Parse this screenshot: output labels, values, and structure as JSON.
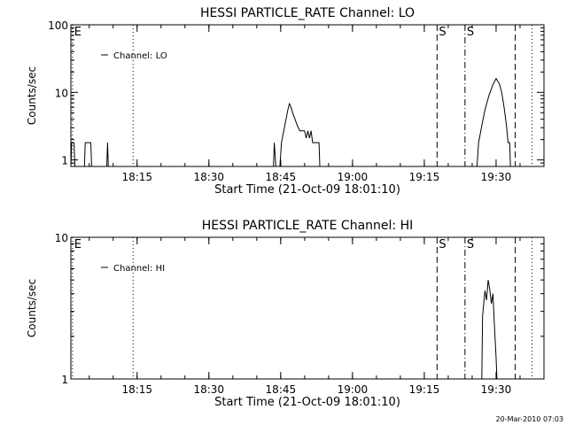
{
  "footer": {
    "timestamp": "20-Mar-2010 07:03"
  },
  "chart_data": [
    {
      "type": "line",
      "title": "HESSI PARTICLE_RATE Channel: LO",
      "xlabel": "Start Time (21-Oct-09 18:01:10)",
      "ylabel": "Counts/sec",
      "yscale": "log",
      "xlim": [
        "18:01:10",
        "19:40:00"
      ],
      "ylim": [
        0.8,
        100
      ],
      "x_ticks": [
        "18:15",
        "18:30",
        "18:45",
        "19:00",
        "19:15",
        "19:30"
      ],
      "y_ticks": [
        "1",
        "10",
        "100"
      ],
      "legend": {
        "position": "top-left",
        "entries": [
          "Channel: LO"
        ]
      },
      "markers": [
        {
          "time": "18:01:30",
          "style": "dotted",
          "label": "E"
        },
        {
          "time": "18:14:10",
          "style": "dotted",
          "label": ""
        },
        {
          "time": "19:17:40",
          "style": "dashed",
          "label": "S"
        },
        {
          "time": "19:23:30",
          "style": "dashdot",
          "label": "S"
        },
        {
          "time": "19:34:00",
          "style": "dashed",
          "label": ""
        },
        {
          "time": "19:37:30",
          "style": "dotted",
          "label": ""
        }
      ],
      "series": [
        {
          "values": [
            [
              "18:01:10",
              0.8
            ],
            [
              "18:01:20",
              1.8
            ],
            [
              "18:01:50",
              1.8
            ],
            [
              "18:02:00",
              0.8
            ],
            [
              "18:04:00",
              0.8
            ],
            [
              "18:04:10",
              1.8
            ],
            [
              "18:05:20",
              1.8
            ],
            [
              "18:05:30",
              0.8
            ],
            [
              "18:08:40",
              0.8
            ],
            [
              "18:08:50",
              1.8
            ],
            [
              "18:09:00",
              0.8
            ],
            [
              "18:43:30",
              0.8
            ],
            [
              "18:43:40",
              1.8
            ],
            [
              "18:44:00",
              0.8
            ],
            [
              "18:44:50",
              0.8
            ],
            [
              "18:45:10",
              1.8
            ],
            [
              "18:45:30",
              2.4
            ],
            [
              "18:46:00",
              3.6
            ],
            [
              "18:46:30",
              5.5
            ],
            [
              "18:46:50",
              6.8
            ],
            [
              "18:47:10",
              6.0
            ],
            [
              "18:47:30",
              5.0
            ],
            [
              "18:48:00",
              4.0
            ],
            [
              "18:48:30",
              3.2
            ],
            [
              "18:49:00",
              2.7
            ],
            [
              "18:50:00",
              2.7
            ],
            [
              "18:50:20",
              2.1
            ],
            [
              "18:50:40",
              2.7
            ],
            [
              "18:51:00",
              2.1
            ],
            [
              "18:51:20",
              2.7
            ],
            [
              "18:51:40",
              1.8
            ],
            [
              "18:53:00",
              1.8
            ],
            [
              "18:53:10",
              0.8
            ],
            [
              "19:26:00",
              0.8
            ],
            [
              "19:26:20",
              1.8
            ],
            [
              "19:27:00",
              3.2
            ],
            [
              "19:27:40",
              5.5
            ],
            [
              "19:28:30",
              9.0
            ],
            [
              "19:29:20",
              13.0
            ],
            [
              "19:30:00",
              16.0
            ],
            [
              "19:30:40",
              13.5
            ],
            [
              "19:31:10",
              10.0
            ],
            [
              "19:31:40",
              6.0
            ],
            [
              "19:32:10",
              3.2
            ],
            [
              "19:32:30",
              1.8
            ],
            [
              "19:32:50",
              1.8
            ],
            [
              "19:33:00",
              0.8
            ]
          ]
        }
      ]
    },
    {
      "type": "line",
      "title": "HESSI PARTICLE_RATE Channel: HI",
      "xlabel": "Start Time (21-Oct-09 18:01:10)",
      "ylabel": "Counts/sec",
      "yscale": "log",
      "xlim": [
        "18:01:10",
        "19:40:00"
      ],
      "ylim": [
        1,
        10
      ],
      "x_ticks": [
        "18:15",
        "18:30",
        "18:45",
        "19:00",
        "19:15",
        "19:30"
      ],
      "y_ticks": [
        "1",
        "10"
      ],
      "legend": {
        "position": "top-left",
        "entries": [
          "Channel: HI"
        ]
      },
      "markers": [
        {
          "time": "18:01:30",
          "style": "dotted",
          "label": "E"
        },
        {
          "time": "18:14:10",
          "style": "dotted",
          "label": ""
        },
        {
          "time": "19:17:40",
          "style": "dashed",
          "label": "S"
        },
        {
          "time": "19:23:30",
          "style": "dashdot",
          "label": "S"
        },
        {
          "time": "19:34:00",
          "style": "dashed",
          "label": ""
        },
        {
          "time": "19:37:30",
          "style": "dotted",
          "label": ""
        }
      ],
      "series": [
        {
          "values": [
            [
              "19:27:00",
              0.9
            ],
            [
              "19:27:10",
              2.8
            ],
            [
              "19:27:40",
              4.2
            ],
            [
              "19:28:00",
              3.6
            ],
            [
              "19:28:20",
              5.0
            ],
            [
              "19:28:40",
              4.3
            ],
            [
              "19:29:00",
              3.4
            ],
            [
              "19:29:20",
              4.0
            ],
            [
              "19:29:40",
              2.3
            ],
            [
              "19:30:00",
              1.4
            ],
            [
              "19:30:10",
              0.9
            ]
          ]
        }
      ]
    }
  ]
}
